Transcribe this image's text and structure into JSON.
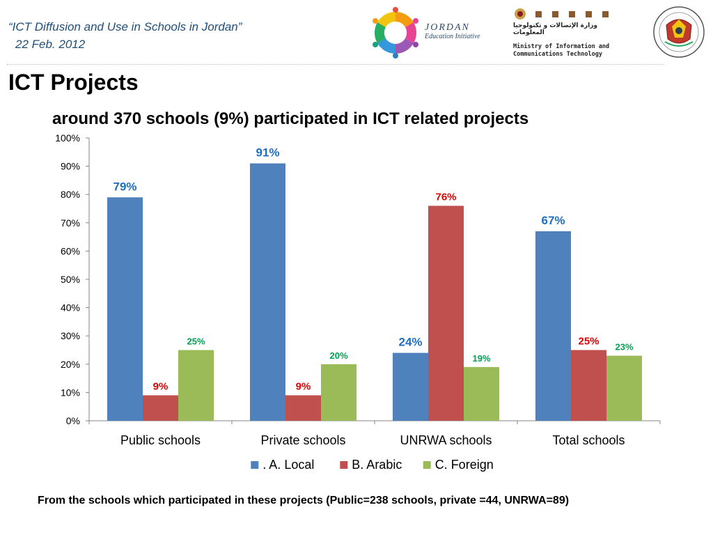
{
  "header": {
    "title": "“ICT  Diffusion and Use in Schools in Jordan”",
    "date": "22 Feb. 2012"
  },
  "logos": {
    "jei": {
      "line1": "JORDAN",
      "line2": "Education Initiative",
      "icon": "jei-swirl-logo-icon"
    },
    "mict": {
      "arabic": "وزارة الإتصالات و تكنولوجيا المعلومات",
      "line1": "Ministry of Information and",
      "line2": "Communications Technology",
      "icon": "mict-crest-icon"
    },
    "ministry_seal": {
      "icon": "ministry-of-education-seal-icon"
    }
  },
  "page_title": "ICT Projects",
  "subtitle": "around 370 schools (9%) participated in ICT related projects",
  "footnote": "From the schools  which participated in these projects (Public=238 schools, private =44, UNRWA=89)",
  "chart_data": {
    "type": "bar",
    "title": "around 370 schools (9%) participated in ICT related projects",
    "xlabel": "",
    "ylabel": "",
    "categories": [
      "Public schools",
      "Private schools",
      "UNRWA schools",
      "Total schools"
    ],
    "series": [
      {
        "name": ". A. Local",
        "color": "#4f81bd",
        "label_color": "#1f6fbf",
        "values": [
          79,
          91,
          24,
          67
        ],
        "labels": [
          "79%",
          "91%",
          "24%",
          "67%"
        ],
        "label_size": "large"
      },
      {
        "name": "B. Arabic",
        "color": "#c0504d",
        "label_color": "#e00000",
        "values": [
          9,
          9,
          76,
          25
        ],
        "labels": [
          "9%",
          "9%",
          "76%",
          "25%"
        ],
        "label_size": "medium"
      },
      {
        "name": "C. Foreign",
        "color": "#9bbb59",
        "label_color": "#00a050",
        "values": [
          25,
          20,
          19,
          23
        ],
        "labels": [
          "25%",
          "20%",
          "19%",
          "23%"
        ],
        "label_size": "small"
      }
    ],
    "ylim": [
      0,
      100
    ],
    "yticks": [
      "0%",
      "10%",
      "20%",
      "30%",
      "40%",
      "50%",
      "60%",
      "70%",
      "80%",
      "90%",
      "100%"
    ],
    "grid": false,
    "legend": "bottom"
  }
}
